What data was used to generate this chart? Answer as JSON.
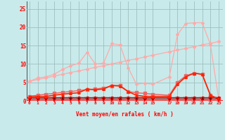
{
  "background_color": "#c8eaea",
  "grid_color": "#a0c0c0",
  "x_ticks": [
    0,
    1,
    2,
    3,
    4,
    5,
    6,
    7,
    8,
    9,
    10,
    11,
    12,
    13,
    14,
    15,
    17,
    18,
    19,
    20,
    21,
    22,
    23
  ],
  "x_tick_labels": [
    "0",
    "1",
    "2",
    "3",
    "4",
    "5",
    "6",
    "7",
    "8",
    "9",
    "10",
    "11",
    "12",
    "13",
    "14",
    "15",
    "17",
    "18",
    "19",
    "20",
    "21",
    "22",
    "23"
  ],
  "ylabel_vals": [
    0,
    5,
    10,
    15,
    20,
    25
  ],
  "xlabel": "Vent moyen/en rafales ( km/h )",
  "ylim": [
    0,
    27
  ],
  "xlim": [
    -0.3,
    23.5
  ],
  "series": [
    {
      "x": [
        0,
        1,
        2,
        3,
        4,
        5,
        6,
        7,
        8,
        9,
        10,
        11,
        12,
        13,
        14,
        15,
        17,
        18,
        19,
        20,
        21,
        22,
        23
      ],
      "y": [
        5.3,
        5.8,
        6.2,
        6.7,
        7.2,
        7.7,
        8.1,
        8.6,
        9.1,
        9.5,
        10.0,
        10.5,
        11.0,
        11.4,
        11.9,
        12.4,
        13.3,
        13.8,
        14.2,
        14.7,
        15.2,
        15.6,
        16.1
      ],
      "color": "#ffaaaa",
      "lw": 0.9,
      "marker": "D",
      "ms": 2.0,
      "zorder": 2
    },
    {
      "x": [
        0,
        1,
        2,
        3,
        4,
        5,
        6,
        7,
        8,
        9,
        10,
        11,
        12,
        13,
        14,
        15,
        17,
        18,
        19,
        20,
        21,
        22,
        23
      ],
      "y": [
        5.3,
        6.2,
        6.5,
        7.2,
        8.5,
        9.5,
        10.2,
        13.2,
        10.0,
        10.2,
        15.5,
        15.2,
        9.0,
        4.5,
        4.8,
        4.5,
        6.5,
        18.0,
        21.0,
        21.2,
        21.2,
        15.3,
        0.5
      ],
      "color": "#ffaaaa",
      "lw": 0.9,
      "marker": "D",
      "ms": 2.0,
      "zorder": 2
    },
    {
      "x": [
        0,
        1,
        2,
        3,
        4,
        5,
        6,
        7,
        8,
        9,
        10,
        11,
        12,
        13,
        14,
        15,
        17,
        18,
        19,
        20,
        21,
        22,
        23
      ],
      "y": [
        1.2,
        1.5,
        1.8,
        2.0,
        2.3,
        2.5,
        2.8,
        3.0,
        3.2,
        3.5,
        4.0,
        4.2,
        2.5,
        2.2,
        2.0,
        1.8,
        1.5,
        5.0,
        6.8,
        7.5,
        7.2,
        1.5,
        0.5
      ],
      "color": "#ee6666",
      "lw": 1.1,
      "marker": "s",
      "ms": 2.2,
      "zorder": 3
    },
    {
      "x": [
        0,
        1,
        2,
        3,
        4,
        5,
        6,
        7,
        8,
        9,
        10,
        11,
        12,
        13,
        14,
        15,
        17,
        18,
        19,
        20,
        21,
        22,
        23
      ],
      "y": [
        1.0,
        1.0,
        1.0,
        1.0,
        1.0,
        1.0,
        1.0,
        1.0,
        1.0,
        1.0,
        1.0,
        1.0,
        1.0,
        1.0,
        1.0,
        1.0,
        1.0,
        1.0,
        1.0,
        1.0,
        1.0,
        1.0,
        1.0
      ],
      "color": "#cc0000",
      "lw": 1.0,
      "marker": "s",
      "ms": 2.0,
      "zorder": 4
    },
    {
      "x": [
        0,
        1,
        2,
        3,
        4,
        5,
        6,
        7,
        8,
        9,
        10,
        11,
        12,
        13,
        14,
        15,
        17,
        18,
        19,
        20,
        21,
        22,
        23
      ],
      "y": [
        1.2,
        1.2,
        1.2,
        1.5,
        1.8,
        2.0,
        2.2,
        3.2,
        3.0,
        3.2,
        4.2,
        4.0,
        2.5,
        1.5,
        1.2,
        1.2,
        1.2,
        4.5,
        6.5,
        7.5,
        7.2,
        1.5,
        0.5
      ],
      "color": "#ff2200",
      "lw": 1.2,
      "marker": "^",
      "ms": 2.5,
      "zorder": 5
    },
    {
      "x": [
        0,
        1,
        2,
        3,
        4,
        5,
        6,
        7,
        8,
        9,
        10,
        11,
        12,
        13,
        14,
        15,
        17,
        18,
        19,
        20,
        21,
        22,
        23
      ],
      "y": [
        0.5,
        0.5,
        0.5,
        0.5,
        0.5,
        0.5,
        0.5,
        0.5,
        0.5,
        0.5,
        0.5,
        0.5,
        0.5,
        0.5,
        0.5,
        0.5,
        0.5,
        0.5,
        0.5,
        0.5,
        0.5,
        0.5,
        0.5
      ],
      "color": "#660000",
      "lw": 0.8,
      "marker": "s",
      "ms": 1.5,
      "zorder": 4
    }
  ]
}
